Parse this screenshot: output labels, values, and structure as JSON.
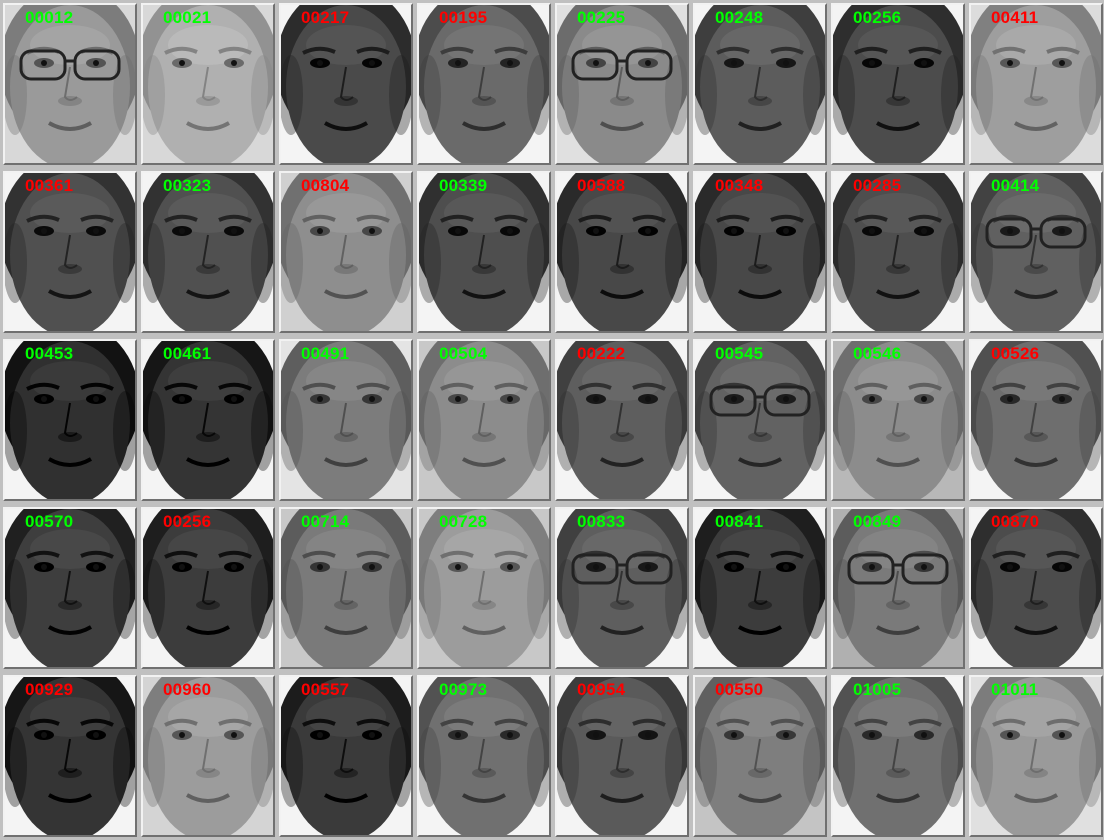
{
  "faces": [
    {
      "id": "00012",
      "status": "green",
      "tone": "#9a9a9a",
      "bg": "#d8d8d8",
      "glasses": true
    },
    {
      "id": "00021",
      "status": "green",
      "tone": "#b0b0b0",
      "bg": "#d8d8d8",
      "glasses": false
    },
    {
      "id": "00217",
      "status": "red",
      "tone": "#4a4a4a",
      "bg": "#f4f4f4",
      "glasses": false
    },
    {
      "id": "00195",
      "status": "red",
      "tone": "#6a6a6a",
      "bg": "#f4f4f4",
      "glasses": false
    },
    {
      "id": "00225",
      "status": "green",
      "tone": "#8a8a8a",
      "bg": "#e0e0e0",
      "glasses": true
    },
    {
      "id": "00248",
      "status": "green",
      "tone": "#5c5c5c",
      "bg": "#f4f4f4",
      "glasses": false
    },
    {
      "id": "00256",
      "status": "green",
      "tone": "#4c4c4c",
      "bg": "#f4f4f4",
      "glasses": false
    },
    {
      "id": "00411",
      "status": "red",
      "tone": "#9e9e9e",
      "bg": "#dcdcdc",
      "glasses": false
    },
    {
      "id": "00361",
      "status": "red",
      "tone": "#505050",
      "bg": "#f4f4f4",
      "glasses": false
    },
    {
      "id": "00323",
      "status": "green",
      "tone": "#505050",
      "bg": "#f4f4f4",
      "glasses": false
    },
    {
      "id": "00804",
      "status": "red",
      "tone": "#8e8e8e",
      "bg": "#d0d0d0",
      "glasses": false
    },
    {
      "id": "00339",
      "status": "green",
      "tone": "#4e4e4e",
      "bg": "#f4f4f4",
      "glasses": false
    },
    {
      "id": "00588",
      "status": "red",
      "tone": "#484848",
      "bg": "#f4f4f4",
      "glasses": false
    },
    {
      "id": "00348",
      "status": "red",
      "tone": "#484848",
      "bg": "#f4f4f4",
      "glasses": false
    },
    {
      "id": "00285",
      "status": "red",
      "tone": "#4e4e4e",
      "bg": "#f4f4f4",
      "glasses": false
    },
    {
      "id": "00414",
      "status": "green",
      "tone": "#606060",
      "bg": "#f4f4f4",
      "glasses": true
    },
    {
      "id": "00453",
      "status": "green",
      "tone": "#303030",
      "bg": "#f4f4f4",
      "glasses": false
    },
    {
      "id": "00461",
      "status": "green",
      "tone": "#343434",
      "bg": "#f4f4f4",
      "glasses": false
    },
    {
      "id": "00491",
      "status": "green",
      "tone": "#7c7c7c",
      "bg": "#e4e4e4",
      "glasses": false
    },
    {
      "id": "00504",
      "status": "green",
      "tone": "#8c8c8c",
      "bg": "#c8c8c8",
      "glasses": false
    },
    {
      "id": "00222",
      "status": "red",
      "tone": "#5e5e5e",
      "bg": "#f4f4f4",
      "glasses": false
    },
    {
      "id": "00545",
      "status": "green",
      "tone": "#626262",
      "bg": "#f4f4f4",
      "glasses": true
    },
    {
      "id": "00546",
      "status": "green",
      "tone": "#8c8c8c",
      "bg": "#b8b8b8",
      "glasses": false
    },
    {
      "id": "00526",
      "status": "red",
      "tone": "#6e6e6e",
      "bg": "#f4f4f4",
      "glasses": false
    },
    {
      "id": "00570",
      "status": "green",
      "tone": "#3e3e3e",
      "bg": "#f4f4f4",
      "glasses": false
    },
    {
      "id": "00256",
      "status": "red",
      "tone": "#3c3c3c",
      "bg": "#f4f4f4",
      "glasses": false
    },
    {
      "id": "00714",
      "status": "green",
      "tone": "#7a7a7a",
      "bg": "#c8c8c8",
      "glasses": false
    },
    {
      "id": "00728",
      "status": "green",
      "tone": "#9c9c9c",
      "bg": "#c8c8c8",
      "glasses": false
    },
    {
      "id": "00833",
      "status": "green",
      "tone": "#5e5e5e",
      "bg": "#f4f4f4",
      "glasses": true
    },
    {
      "id": "00841",
      "status": "green",
      "tone": "#3c3c3c",
      "bg": "#f4f4f4",
      "glasses": false
    },
    {
      "id": "00849",
      "status": "green",
      "tone": "#7a7a7a",
      "bg": "#b0b0b0",
      "glasses": true
    },
    {
      "id": "00870",
      "status": "red",
      "tone": "#4c4c4c",
      "bg": "#f4f4f4",
      "glasses": false
    },
    {
      "id": "00929",
      "status": "red",
      "tone": "#343434",
      "bg": "#f4f4f4",
      "glasses": false
    },
    {
      "id": "00960",
      "status": "red",
      "tone": "#9c9c9c",
      "bg": "#d4d4d4",
      "glasses": false
    },
    {
      "id": "00557",
      "status": "red",
      "tone": "#3a3a3a",
      "bg": "#f4f4f4",
      "glasses": false
    },
    {
      "id": "00973",
      "status": "green",
      "tone": "#707070",
      "bg": "#f4f4f4",
      "glasses": false
    },
    {
      "id": "00954",
      "status": "red",
      "tone": "#5a5a5a",
      "bg": "#f4f4f4",
      "glasses": false
    },
    {
      "id": "00550",
      "status": "red",
      "tone": "#7e7e7e",
      "bg": "#c4c4c4",
      "glasses": false
    },
    {
      "id": "01005",
      "status": "green",
      "tone": "#707070",
      "bg": "#f4f4f4",
      "glasses": false
    },
    {
      "id": "01011",
      "status": "green",
      "tone": "#9a9a9a",
      "bg": "#e0e0e0",
      "glasses": false
    }
  ],
  "colors": {
    "green": "#00ff00",
    "red": "#ff0000"
  },
  "icons": {
    "face": "face-portrait-icon"
  }
}
